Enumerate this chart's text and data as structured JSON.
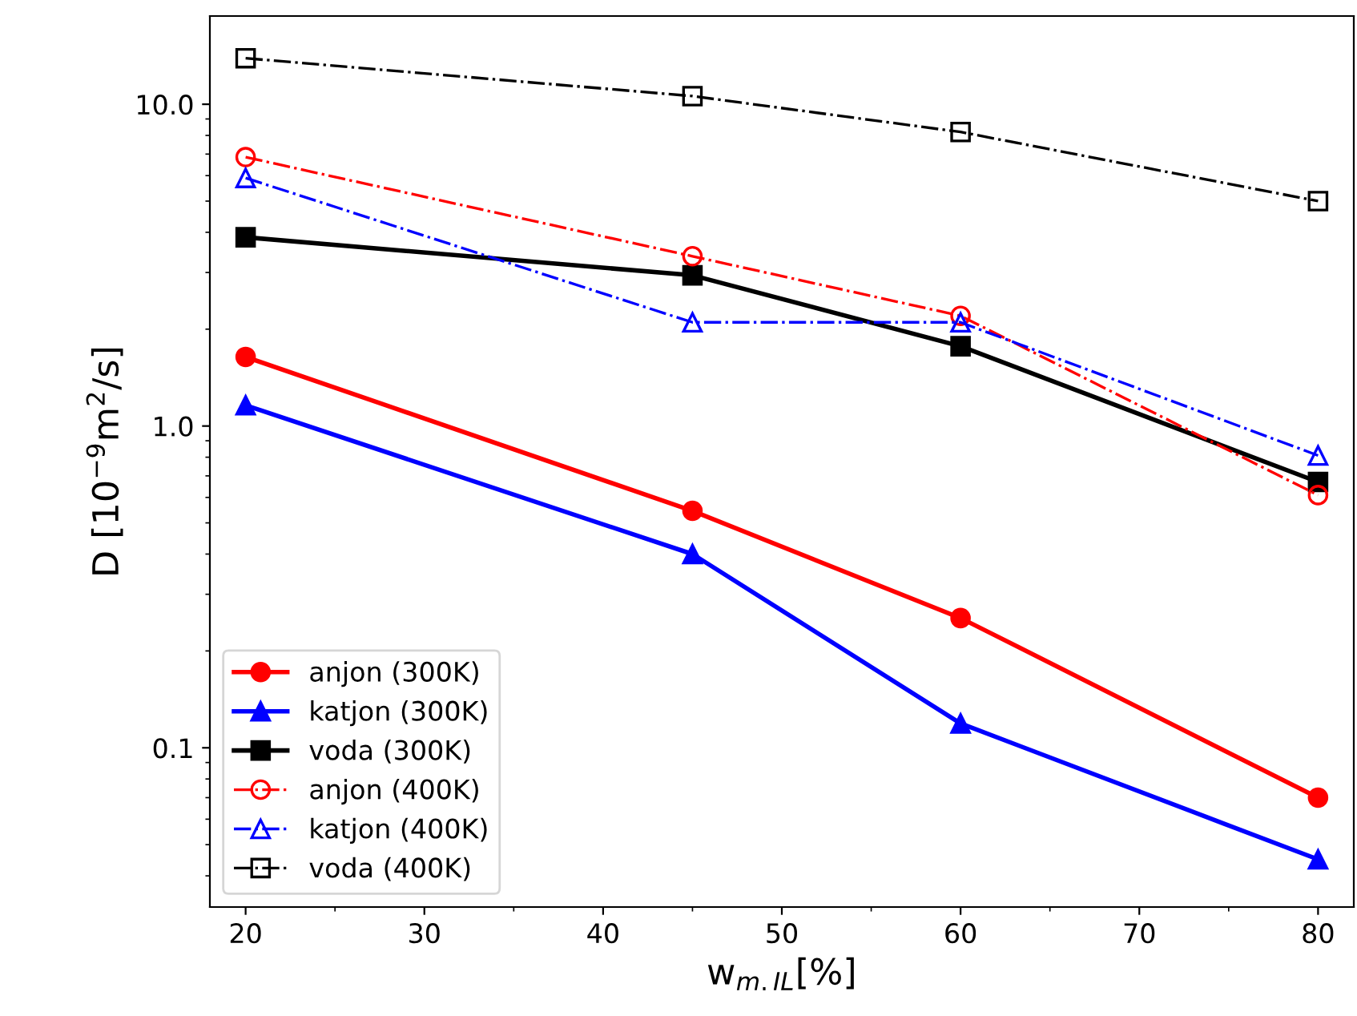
{
  "chart_data": {
    "type": "line",
    "xlabel": "w$_{m.IL}$[%]",
    "ylabel": "D [10$^{−9}$m$^{2}$/s]",
    "log": "y",
    "x": [
      20,
      45,
      60,
      80
    ],
    "xlim": [
      18,
      82
    ],
    "xticks": [
      20,
      30,
      40,
      50,
      60,
      70,
      80
    ],
    "ylim": [
      0.032,
      18.8
    ],
    "yticks": [
      0.1,
      {
        "value": 1,
        "label": "1.0"
      },
      {
        "value": 10,
        "label": "10.0"
      }
    ],
    "grid": false,
    "legend": "bottom left",
    "series": [
      {
        "name": "anjon (300K)",
        "color": "#ff0000",
        "marker": "circle",
        "line_style": "solid",
        "values": [
          1.64,
          0.545,
          0.253,
          0.07
        ]
      },
      {
        "name": "katjon (300K)",
        "color": "#0000ff",
        "marker": "triangle",
        "line_style": "solid",
        "values": [
          1.16,
          0.4,
          0.119,
          0.045
        ]
      },
      {
        "name": "voda (300K)",
        "color": "#000000",
        "marker": "square",
        "line_style": "solid",
        "values": [
          3.86,
          2.94,
          1.77,
          0.67
        ]
      },
      {
        "name": "anjon (400K)",
        "color": "#ff0000",
        "marker": "circle",
        "line_style": "dashdot",
        "values": [
          6.85,
          3.37,
          2.2,
          0.61
        ]
      },
      {
        "name": "katjon (400K)",
        "color": "#0000ff",
        "marker": "triangle",
        "line_style": "dashdot",
        "values": [
          5.9,
          2.1,
          2.1,
          0.81
        ]
      },
      {
        "name": "voda (400K)",
        "color": "#000000",
        "marker": "square",
        "line_style": "dashdot",
        "values": [
          13.9,
          10.6,
          8.2,
          5.0
        ]
      }
    ]
  }
}
